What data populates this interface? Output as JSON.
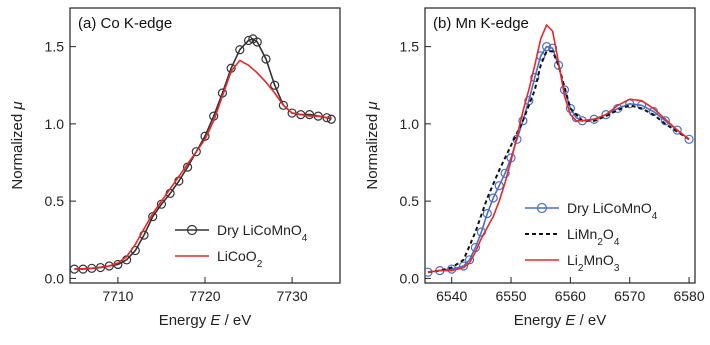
{
  "chart_data": [
    {
      "type": "line",
      "panel_label": "(a) Co K-edge",
      "xlabel_prefix": "Energy ",
      "xlabel_var": "E",
      "xlabel_suffix": " / eV",
      "ylabel_prefix": "Normalized ",
      "ylabel_var": "μ",
      "xlim": [
        7704.5,
        7735.5
      ],
      "ylim": [
        -0.03,
        1.75
      ],
      "xticks": [
        7710,
        7720,
        7730
      ],
      "xtick_labels": [
        "7710",
        "7720",
        "7730"
      ],
      "yticks": [
        0.0,
        0.5,
        1.0,
        1.5
      ],
      "ytick_labels": [
        "0.0",
        "0.5",
        "1.0",
        "1.5"
      ],
      "legend_position": "bottom-right",
      "series": [
        {
          "name_parts": [
            {
              "t": "Dry LiCoMnO"
            },
            {
              "t": "4",
              "sub": true
            }
          ],
          "color": "#333333",
          "marker": "circle",
          "line": "solid",
          "x": [
            7705,
            7706,
            7707,
            7708,
            7709,
            7710,
            7711,
            7712,
            7713,
            7714,
            7715,
            7716,
            7717,
            7718,
            7719,
            7720,
            7721,
            7722,
            7723,
            7724,
            7725,
            7725.5,
            7726,
            7727,
            7728,
            7729,
            7730,
            7731,
            7732,
            7733,
            7734,
            7734.5
          ],
          "y": [
            0.06,
            0.06,
            0.065,
            0.07,
            0.08,
            0.09,
            0.12,
            0.18,
            0.28,
            0.4,
            0.48,
            0.55,
            0.63,
            0.72,
            0.82,
            0.92,
            1.05,
            1.2,
            1.36,
            1.48,
            1.54,
            1.55,
            1.53,
            1.42,
            1.25,
            1.12,
            1.07,
            1.06,
            1.06,
            1.05,
            1.04,
            1.03
          ]
        },
        {
          "name_parts": [
            {
              "t": "LiCoO"
            },
            {
              "t": "2",
              "sub": true
            }
          ],
          "color": "#e8282b",
          "marker": "none",
          "line": "solid",
          "x": [
            7705,
            7707,
            7709,
            7710,
            7711,
            7712,
            7713,
            7714,
            7715,
            7716,
            7717,
            7718,
            7719,
            7720,
            7721,
            7722,
            7723,
            7724,
            7725,
            7726,
            7727,
            7728,
            7729,
            7730,
            7731,
            7732,
            7733,
            7734,
            7734.5
          ],
          "y": [
            0.06,
            0.065,
            0.08,
            0.1,
            0.14,
            0.22,
            0.32,
            0.42,
            0.5,
            0.58,
            0.66,
            0.74,
            0.82,
            0.9,
            1.02,
            1.18,
            1.34,
            1.41,
            1.38,
            1.33,
            1.27,
            1.2,
            1.12,
            1.07,
            1.06,
            1.05,
            1.05,
            1.04,
            1.04
          ]
        }
      ]
    },
    {
      "type": "line",
      "panel_label": "(b) Mn K-edge",
      "xlabel_prefix": "Energy ",
      "xlabel_var": "E",
      "xlabel_suffix": " / eV",
      "ylabel_prefix": "Normalized ",
      "ylabel_var": "μ",
      "xlim": [
        6535.5,
        6581
      ],
      "ylim": [
        -0.03,
        1.75
      ],
      "xticks": [
        6540,
        6550,
        6560,
        6570,
        6580
      ],
      "xtick_labels": [
        "6540",
        "6550",
        "6560",
        "6570",
        "6580"
      ],
      "yticks": [
        0.0,
        0.5,
        1.0,
        1.5
      ],
      "ytick_labels": [
        "0.0",
        "0.5",
        "1.0",
        "1.5"
      ],
      "legend_position": "bottom-right",
      "series": [
        {
          "name_parts": [
            {
              "t": "Dry LiCoMnO"
            },
            {
              "t": "4",
              "sub": true
            }
          ],
          "color": "#4a6fc4",
          "marker": "circle",
          "line": "solid",
          "x": [
            6536,
            6538,
            6540,
            6542,
            6543,
            6544,
            6545,
            6546,
            6547,
            6548,
            6549,
            6550,
            6551,
            6552,
            6553,
            6554,
            6555,
            6556,
            6557,
            6558,
            6559,
            6560,
            6561,
            6562,
            6564,
            6566,
            6568,
            6570,
            6572,
            6574,
            6576,
            6578,
            6580
          ],
          "y": [
            0.04,
            0.05,
            0.06,
            0.08,
            0.12,
            0.2,
            0.3,
            0.42,
            0.52,
            0.6,
            0.68,
            0.78,
            0.9,
            1.02,
            1.15,
            1.3,
            1.44,
            1.5,
            1.49,
            1.38,
            1.22,
            1.1,
            1.04,
            1.02,
            1.03,
            1.06,
            1.1,
            1.13,
            1.12,
            1.08,
            1.02,
            0.96,
            0.9
          ]
        },
        {
          "name_parts": [
            {
              "t": "LiMn"
            },
            {
              "t": "2",
              "sub": true
            },
            {
              "t": "O"
            },
            {
              "t": "4",
              "sub": true
            }
          ],
          "color": "#111111",
          "marker": "none",
          "line": "dashed",
          "x": [
            6536,
            6538,
            6540,
            6542,
            6544,
            6546,
            6548,
            6550,
            6552,
            6554,
            6555,
            6556,
            6557,
            6558,
            6560,
            6562,
            6564,
            6566,
            6568,
            6570,
            6572,
            6574,
            6576,
            6578,
            6580
          ],
          "y": [
            0.04,
            0.05,
            0.07,
            0.12,
            0.3,
            0.52,
            0.7,
            0.86,
            1.02,
            1.22,
            1.38,
            1.47,
            1.47,
            1.38,
            1.1,
            1.02,
            1.02,
            1.05,
            1.09,
            1.12,
            1.1,
            1.06,
            1.0,
            0.95,
            0.9
          ]
        },
        {
          "name_parts": [
            {
              "t": "Li"
            },
            {
              "t": "2",
              "sub": true
            },
            {
              "t": "MnO"
            },
            {
              "t": "3",
              "sub": true
            }
          ],
          "color": "#e8282b",
          "marker": "none",
          "line": "solid",
          "x": [
            6536,
            6538,
            6540,
            6542,
            6543,
            6544,
            6545,
            6546,
            6547,
            6548,
            6549,
            6550,
            6551,
            6552,
            6553,
            6554,
            6555,
            6556,
            6557,
            6558,
            6559,
            6560,
            6561,
            6562,
            6564,
            6566,
            6568,
            6570,
            6572,
            6574,
            6576,
            6578,
            6580
          ],
          "y": [
            0.04,
            0.05,
            0.05,
            0.07,
            0.1,
            0.17,
            0.26,
            0.33,
            0.4,
            0.5,
            0.62,
            0.76,
            0.92,
            1.08,
            1.22,
            1.38,
            1.55,
            1.64,
            1.6,
            1.4,
            1.18,
            1.06,
            1.02,
            1.02,
            1.03,
            1.06,
            1.12,
            1.16,
            1.15,
            1.1,
            1.03,
            0.96,
            0.9
          ]
        }
      ]
    }
  ]
}
